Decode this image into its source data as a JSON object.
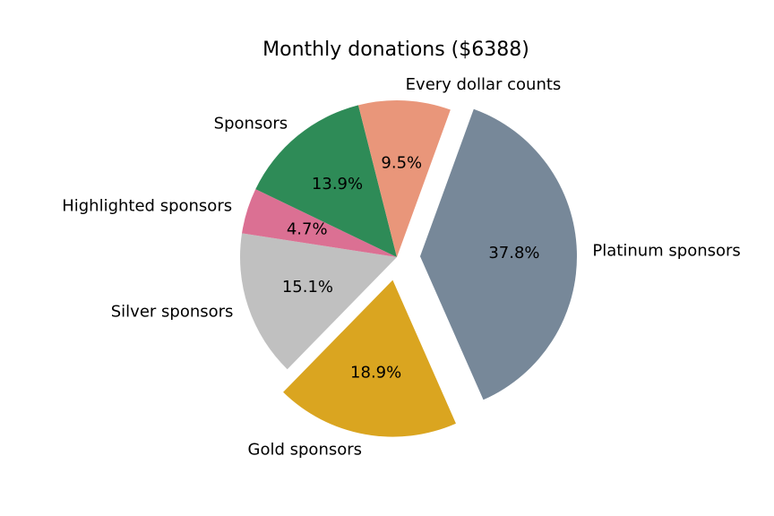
{
  "chart_data": {
    "type": "pie",
    "title": "Monthly donations ($6388)",
    "slices": [
      {
        "label": "Platinum sponsors",
        "percent": 37.8,
        "pct_label": "37.8%",
        "color": "#778899",
        "exploded": true
      },
      {
        "label": "Gold sponsors",
        "percent": 18.9,
        "pct_label": "18.9%",
        "color": "#daa520",
        "exploded": true
      },
      {
        "label": "Silver sponsors",
        "percent": 15.1,
        "pct_label": "15.1%",
        "color": "#c0c0c0",
        "exploded": false
      },
      {
        "label": "Highlighted sponsors",
        "percent": 4.7,
        "pct_label": "4.7%",
        "color": "#db7093",
        "exploded": false
      },
      {
        "label": "Sponsors",
        "percent": 13.9,
        "pct_label": "13.9%",
        "color": "#2e8b57",
        "exploded": false
      },
      {
        "label": "Every dollar counts",
        "percent": 9.5,
        "pct_label": "9.5%",
        "color": "#e9967a",
        "exploded": false
      }
    ]
  }
}
